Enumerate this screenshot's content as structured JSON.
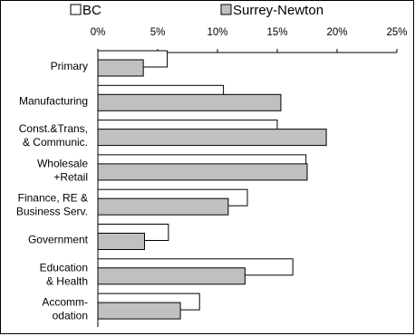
{
  "chart_data": {
    "type": "bar",
    "orientation": "horizontal",
    "categories": [
      [
        "Primary"
      ],
      [
        "Manufacturing"
      ],
      [
        "Const.&Trans,",
        "& Communic."
      ],
      [
        "Wholesale",
        "+Retail"
      ],
      [
        "Finance, RE &",
        "Business Serv."
      ],
      [
        "Government"
      ],
      [
        "Education",
        "& Health"
      ],
      [
        "Accomm-",
        "odation"
      ]
    ],
    "series": [
      {
        "name": "BC",
        "color": "#ffffff",
        "values": [
          5.8,
          10.5,
          15.0,
          17.4,
          12.5,
          5.9,
          16.3,
          8.5
        ]
      },
      {
        "name": "Surrey-Newton",
        "color": "#c0c0c0",
        "values": [
          3.8,
          15.3,
          19.1,
          17.5,
          10.9,
          3.9,
          12.3,
          6.9
        ]
      }
    ],
    "xlim": [
      0,
      25
    ],
    "x_ticks": [
      "0%",
      "5%",
      "10%",
      "15%",
      "20%",
      "25%"
    ],
    "x_tick_values": [
      0,
      5,
      10,
      15,
      20,
      25
    ],
    "axis_position": "top",
    "grid": false,
    "legend_position": "top"
  }
}
